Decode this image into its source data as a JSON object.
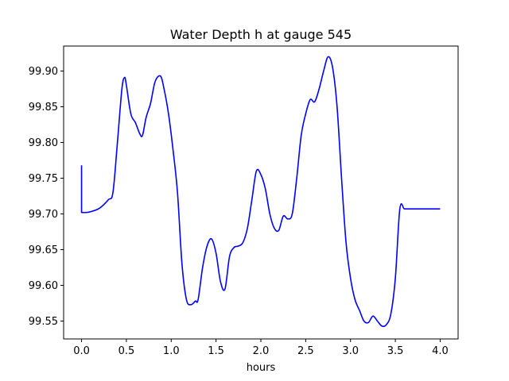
{
  "chart_data": {
    "type": "line",
    "title": "Water Depth h at gauge 545",
    "xlabel": "hours",
    "ylabel": "",
    "xlim": [
      -0.2,
      4.2
    ],
    "ylim": [
      99.525,
      99.935
    ],
    "xticks": [
      "0.0",
      "0.5",
      "1.0",
      "1.5",
      "2.0",
      "2.5",
      "3.0",
      "3.5",
      "4.0"
    ],
    "yticks": [
      "99.55",
      "99.60",
      "99.65",
      "99.70",
      "99.75",
      "99.80",
      "99.85",
      "99.90"
    ],
    "grid": false,
    "series_color": "#0000ff",
    "series": [
      {
        "x": [
          0.0,
          0.0,
          0.05,
          0.1,
          0.2,
          0.3,
          0.35,
          0.4,
          0.45,
          0.48,
          0.5,
          0.55,
          0.6,
          0.65,
          0.68,
          0.72,
          0.77,
          0.82,
          0.88,
          0.92,
          0.97,
          1.02,
          1.07,
          1.12,
          1.17,
          1.22,
          1.27,
          1.3,
          1.35,
          1.4,
          1.45,
          1.5,
          1.55,
          1.6,
          1.65,
          1.7,
          1.75,
          1.8,
          1.85,
          1.9,
          1.95,
          2.0,
          2.05,
          2.1,
          2.15,
          2.2,
          2.25,
          2.3,
          2.35,
          2.4,
          2.45,
          2.5,
          2.55,
          2.6,
          2.65,
          2.7,
          2.75,
          2.8,
          2.85,
          2.9,
          2.95,
          3.0,
          3.05,
          3.1,
          3.15,
          3.2,
          3.25,
          3.3,
          3.35,
          3.4,
          3.45,
          3.5,
          3.55,
          3.6,
          3.65,
          3.7,
          3.75,
          3.8,
          3.85,
          3.9,
          3.95,
          4.0
        ],
        "y": [
          99.768,
          99.702,
          99.702,
          99.703,
          99.708,
          99.72,
          99.73,
          99.8,
          99.875,
          99.891,
          99.88,
          99.84,
          99.828,
          99.812,
          99.81,
          99.835,
          99.855,
          99.885,
          99.893,
          99.875,
          99.84,
          99.79,
          99.73,
          99.63,
          99.58,
          99.573,
          99.578,
          99.58,
          99.625,
          99.655,
          99.665,
          99.645,
          99.605,
          99.595,
          99.64,
          99.653,
          99.655,
          99.66,
          99.68,
          99.72,
          99.76,
          99.755,
          99.735,
          99.7,
          99.68,
          99.677,
          99.697,
          99.693,
          99.7,
          99.75,
          99.81,
          99.84,
          99.86,
          99.857,
          99.875,
          99.9,
          99.92,
          99.905,
          99.85,
          99.75,
          99.66,
          99.61,
          99.58,
          99.565,
          99.55,
          99.548,
          99.557,
          99.55,
          99.543,
          99.545,
          99.56,
          99.61,
          99.707,
          99.707,
          99.707,
          99.707,
          99.707,
          99.707,
          99.707,
          99.707,
          99.707,
          99.707
        ]
      }
    ]
  }
}
